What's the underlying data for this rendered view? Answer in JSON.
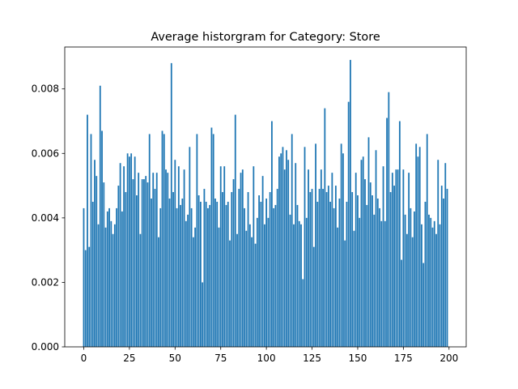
{
  "chart_data": {
    "type": "bar",
    "title": "Average historgram for Category: Store",
    "color": "#1f77b4",
    "x": [
      0,
      1,
      2,
      3,
      4,
      5,
      6,
      7,
      8,
      9,
      10,
      11,
      12,
      13,
      14,
      15,
      16,
      17,
      18,
      19,
      20,
      21,
      22,
      23,
      24,
      25,
      26,
      27,
      28,
      29,
      30,
      31,
      32,
      33,
      34,
      35,
      36,
      37,
      38,
      39,
      40,
      41,
      42,
      43,
      44,
      45,
      46,
      47,
      48,
      49,
      50,
      51,
      52,
      53,
      54,
      55,
      56,
      57,
      58,
      59,
      60,
      61,
      62,
      63,
      64,
      65,
      66,
      67,
      68,
      69,
      70,
      71,
      72,
      73,
      74,
      75,
      76,
      77,
      78,
      79,
      80,
      81,
      82,
      83,
      84,
      85,
      86,
      87,
      88,
      89,
      90,
      91,
      92,
      93,
      94,
      95,
      96,
      97,
      98,
      99,
      100,
      101,
      102,
      103,
      104,
      105,
      106,
      107,
      108,
      109,
      110,
      111,
      112,
      113,
      114,
      115,
      116,
      117,
      118,
      119,
      120,
      121,
      122,
      123,
      124,
      125,
      126,
      127,
      128,
      129,
      130,
      131,
      132,
      133,
      134,
      135,
      136,
      137,
      138,
      139,
      140,
      141,
      142,
      143,
      144,
      145,
      146,
      147,
      148,
      149,
      150,
      151,
      152,
      153,
      154,
      155,
      156,
      157,
      158,
      159,
      160,
      161,
      162,
      163,
      164,
      165,
      166,
      167,
      168,
      169,
      170,
      171,
      172,
      173,
      174,
      175,
      176,
      177,
      178,
      179,
      180,
      181,
      182,
      183,
      184,
      185,
      186,
      187,
      188,
      189,
      190,
      191,
      192,
      193,
      194,
      195,
      196,
      197,
      198,
      199
    ],
    "values": [
      0.0043,
      0.003,
      0.0072,
      0.0031,
      0.0066,
      0.0045,
      0.0058,
      0.0053,
      0.0038,
      0.0081,
      0.0067,
      0.0051,
      0.0037,
      0.0042,
      0.0043,
      0.0039,
      0.0035,
      0.0038,
      0.0043,
      0.005,
      0.0057,
      0.0042,
      0.0056,
      0.0048,
      0.006,
      0.0059,
      0.006,
      0.0052,
      0.0059,
      0.0047,
      0.0054,
      0.0035,
      0.0052,
      0.0052,
      0.0053,
      0.0051,
      0.0066,
      0.0046,
      0.0054,
      0.0049,
      0.0054,
      0.0034,
      0.0043,
      0.0067,
      0.0066,
      0.0055,
      0.0054,
      0.0046,
      0.0088,
      0.0048,
      0.0058,
      0.0043,
      0.0056,
      0.0044,
      0.0046,
      0.0055,
      0.0039,
      0.0041,
      0.0062,
      0.0043,
      0.0034,
      0.0037,
      0.0066,
      0.0047,
      0.0045,
      0.002,
      0.0049,
      0.0045,
      0.0043,
      0.0044,
      0.0068,
      0.0066,
      0.0046,
      0.0045,
      0.0037,
      0.0056,
      0.0048,
      0.0056,
      0.0044,
      0.0045,
      0.0033,
      0.0048,
      0.0052,
      0.0072,
      0.0035,
      0.0049,
      0.0054,
      0.0055,
      0.0043,
      0.0036,
      0.0048,
      0.0038,
      0.0034,
      0.0056,
      0.0032,
      0.004,
      0.0047,
      0.0045,
      0.0053,
      0.0038,
      0.0046,
      0.004,
      0.0048,
      0.007,
      0.0043,
      0.0044,
      0.0049,
      0.0059,
      0.006,
      0.0062,
      0.0055,
      0.0061,
      0.0058,
      0.0041,
      0.0066,
      0.0038,
      0.0057,
      0.0044,
      0.0039,
      0.0038,
      0.0021,
      0.0062,
      0.004,
      0.0055,
      0.0048,
      0.0049,
      0.0031,
      0.0063,
      0.0045,
      0.0049,
      0.0055,
      0.0049,
      0.0074,
      0.0048,
      0.005,
      0.0045,
      0.0054,
      0.0043,
      0.005,
      0.0037,
      0.0046,
      0.0063,
      0.006,
      0.0033,
      0.0045,
      0.0076,
      0.0089,
      0.0048,
      0.0036,
      0.0054,
      0.0047,
      0.004,
      0.0058,
      0.0059,
      0.0052,
      0.0044,
      0.0065,
      0.0051,
      0.0047,
      0.0041,
      0.0061,
      0.0046,
      0.0043,
      0.0039,
      0.0056,
      0.0039,
      0.0071,
      0.0079,
      0.0048,
      0.0054,
      0.005,
      0.0055,
      0.0055,
      0.007,
      0.0027,
      0.0055,
      0.0041,
      0.0035,
      0.0054,
      0.0043,
      0.0034,
      0.0042,
      0.0063,
      0.0059,
      0.0062,
      0.0038,
      0.0026,
      0.0045,
      0.0066,
      0.0041,
      0.004,
      0.0037,
      0.0039,
      0.0035,
      0.0058,
      0.0038,
      0.005,
      0.0046,
      0.0057,
      0.0049
    ],
    "xlim": [
      -10.4,
      209.4
    ],
    "xticks": [
      0,
      25,
      50,
      75,
      100,
      125,
      150,
      175,
      200
    ],
    "ylim": [
      0,
      0.0093
    ],
    "yticks": [
      {
        "value": 0,
        "label": "0.000"
      },
      {
        "value": 0.002,
        "label": "0.002"
      },
      {
        "value": 0.004,
        "label": "0.004"
      },
      {
        "value": 0.006,
        "label": "0.006"
      },
      {
        "value": 0.008,
        "label": "0.008"
      }
    ]
  }
}
